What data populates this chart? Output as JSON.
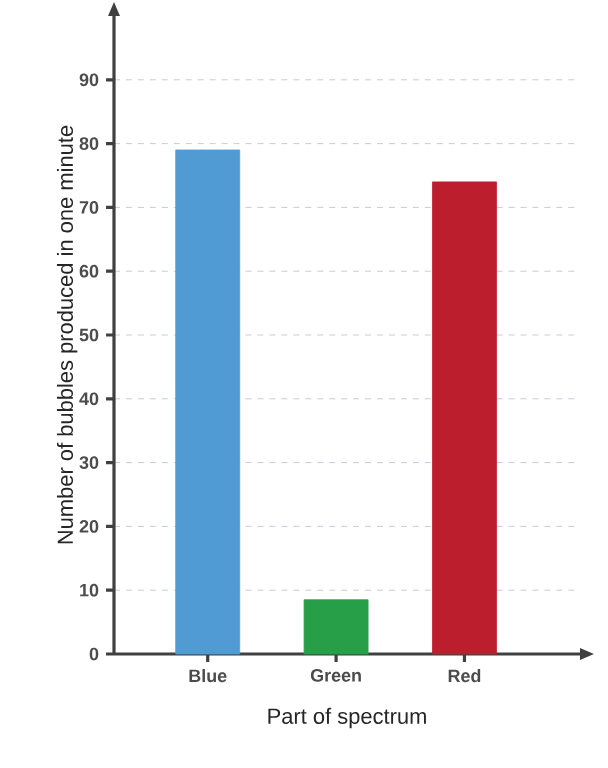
{
  "chart_data": {
    "type": "bar",
    "xlabel": "Part of spectrum",
    "ylabel": "Number of bubbles produced in one minute",
    "categories": [
      "Blue",
      "Green",
      "Red"
    ],
    "values": [
      79,
      8.5,
      74
    ],
    "colors": [
      "#519bd5",
      "#279f48",
      "#bd1e2e"
    ],
    "ylim": [
      0,
      100
    ],
    "yticks": [
      0,
      10,
      20,
      30,
      40,
      50,
      60,
      70,
      80,
      90
    ],
    "grid": "y"
  }
}
